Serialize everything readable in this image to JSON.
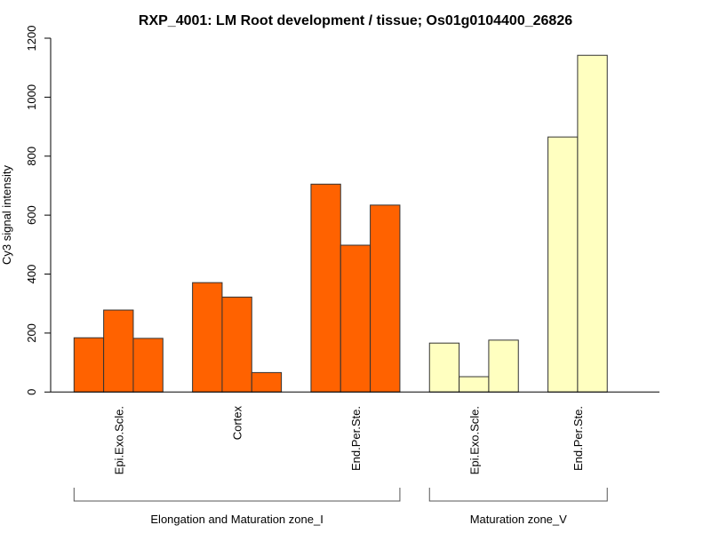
{
  "chart_data": {
    "type": "bar",
    "title": "RXP_4001: LM Root development / tissue; Os01g0104400_26826",
    "xlabel": "",
    "ylabel": "Cy3 signal intensity",
    "ylim": [
      0,
      1200
    ],
    "yticks": [
      0,
      200,
      400,
      600,
      800,
      1000,
      1200
    ],
    "grid": false,
    "legend": "none",
    "groups": [
      {
        "label": "Elongation and Maturation zone_I",
        "color": "#FF6200",
        "categories": [
          {
            "label": "Epi.Exo.Scle.",
            "values": [
              184,
              278,
              182
            ]
          },
          {
            "label": "Cortex",
            "values": [
              371,
              322,
              66
            ]
          },
          {
            "label": "End.Per.Ste.",
            "values": [
              705,
              498,
              634
            ]
          }
        ]
      },
      {
        "label": "Maturation zone_V",
        "color": "#FFFFC0",
        "categories": [
          {
            "label": "Epi.Exo.Scle.",
            "values": [
              166,
              52,
              176
            ]
          },
          {
            "label": "End.Per.Ste.",
            "values": [
              865,
              1142
            ]
          }
        ]
      }
    ]
  }
}
